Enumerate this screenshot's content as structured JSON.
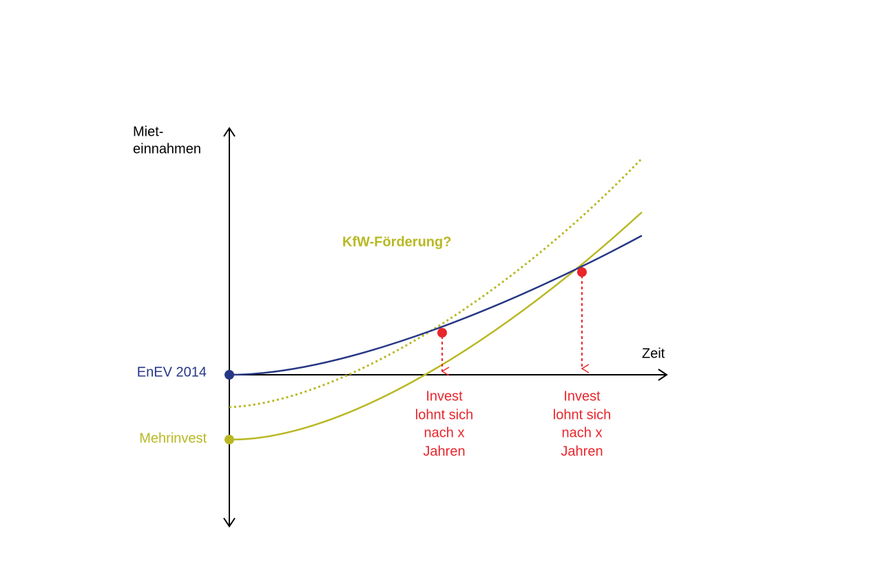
{
  "axes": {
    "y_label": [
      "Miet-",
      "einnahmen"
    ],
    "x_label": "Zeit"
  },
  "curves": {
    "enev": "EnEV 2014",
    "mehrinvest": "Mehrinvest",
    "foerderung": "KfW-Förderung?"
  },
  "annotations": [
    {
      "lines": [
        "Invest",
        "lohnt sich",
        "nach x",
        "Jahren"
      ]
    },
    {
      "lines": [
        "Invest",
        "lohnt sich",
        "nach x",
        "Jahren"
      ]
    }
  ]
}
